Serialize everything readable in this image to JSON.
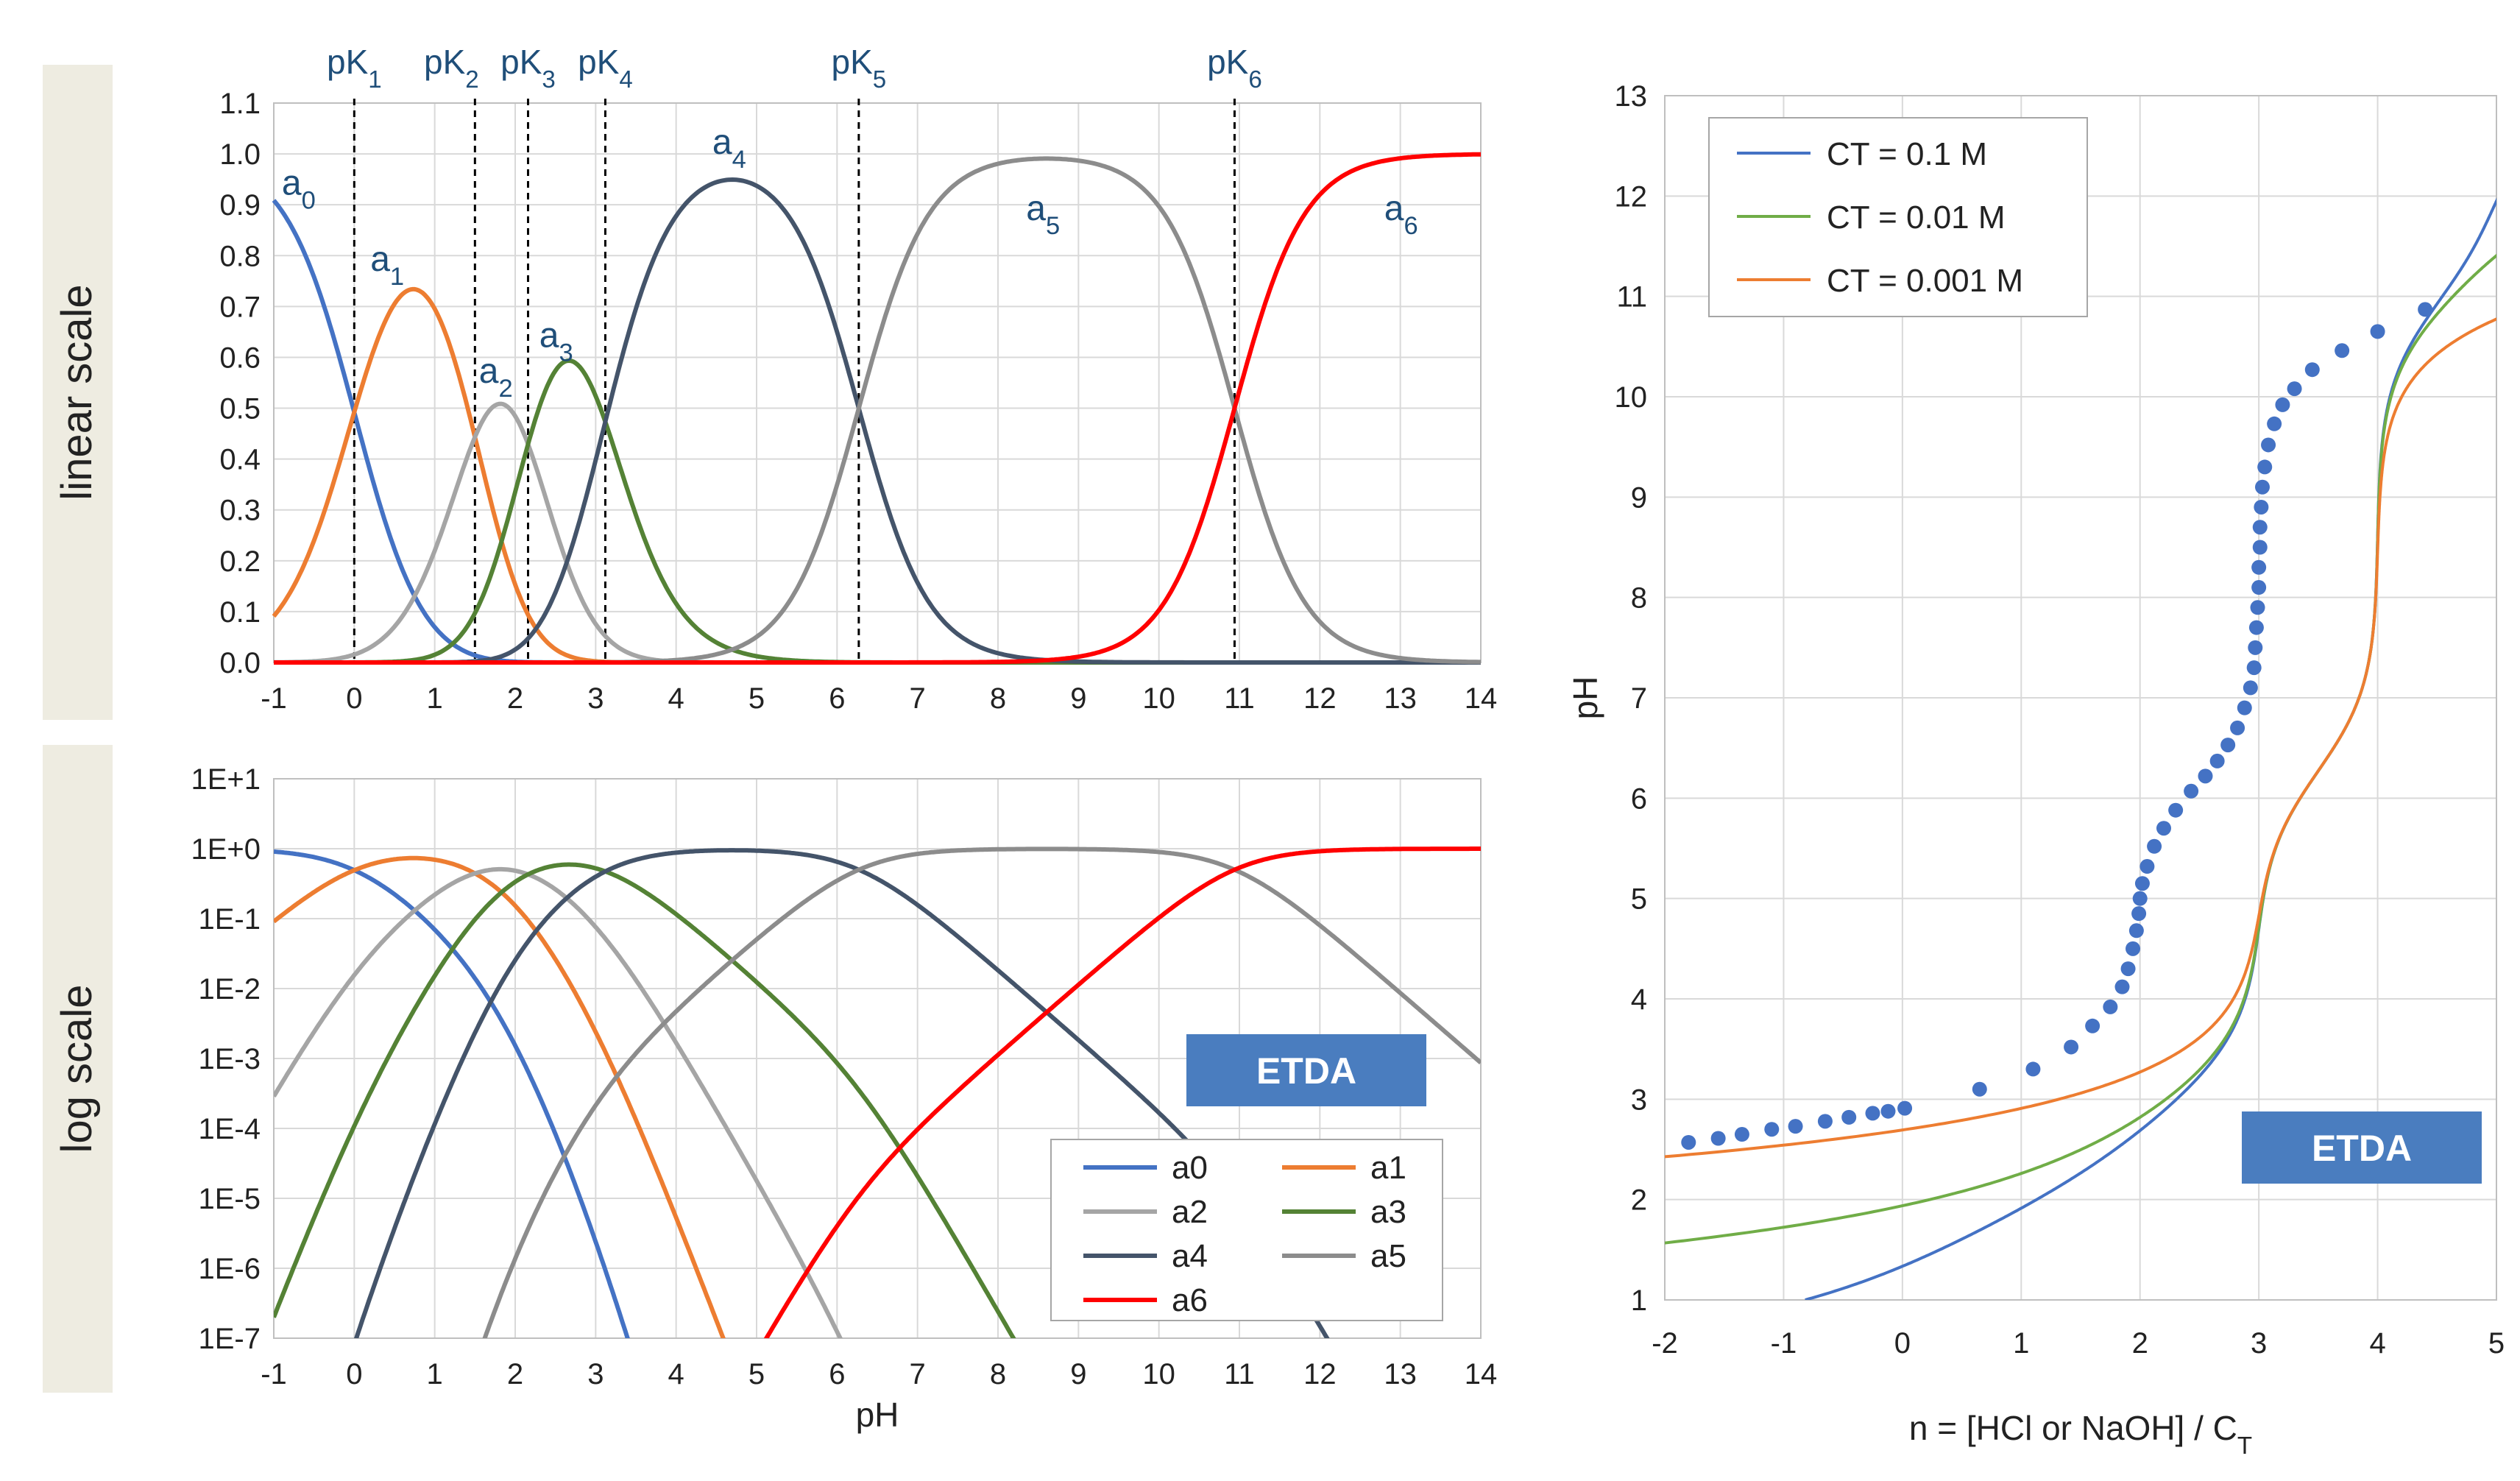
{
  "colors": {
    "a0": "#4472c4",
    "a1": "#ed7d31",
    "a2": "#a5a5a5",
    "a3": "#548235",
    "a4": "#44546a",
    "a5": "#8c8c8c",
    "a6": "#ff0000",
    "ct01": "#4472c4",
    "ct001": "#70ad47",
    "ct0001": "#ed7d31",
    "points": "#4472c4",
    "badge": "#4a7dbf",
    "scale_bg": "#eeece1",
    "grid": "#d9d9d9"
  },
  "side_labels": {
    "linear": "linear scale",
    "log": "log scale"
  },
  "badge_text": "ETDA",
  "chart_data": [
    {
      "id": "linear",
      "type": "line",
      "title": "",
      "xlabel": "",
      "ylabel": "",
      "xlim": [
        -1,
        14
      ],
      "ylim": [
        0,
        1.1
      ],
      "x_ticks": [
        "-1",
        "0",
        "1",
        "2",
        "3",
        "4",
        "5",
        "6",
        "7",
        "8",
        "9",
        "10",
        "11",
        "12",
        "13",
        "14"
      ],
      "y_ticks": [
        "0.0",
        "0.1",
        "0.2",
        "0.3",
        "0.4",
        "0.5",
        "0.6",
        "0.7",
        "0.8",
        "0.9",
        "1.0",
        "1.1"
      ],
      "pK_values": [
        0.0,
        1.5,
        2.16,
        3.12,
        6.27,
        10.94
      ],
      "pK_labels": [
        {
          "main": "pK",
          "sub": "1"
        },
        {
          "main": "pK",
          "sub": "2"
        },
        {
          "main": "pK",
          "sub": "3"
        },
        {
          "main": "pK",
          "sub": "4"
        },
        {
          "main": "pK",
          "sub": "5"
        },
        {
          "main": "pK",
          "sub": "6"
        }
      ],
      "curve_labels": [
        {
          "main": "a",
          "sub": "0",
          "x": -0.9,
          "y": 0.92
        },
        {
          "main": "a",
          "sub": "1",
          "x": 0.2,
          "y": 0.77
        },
        {
          "main": "a",
          "sub": "2",
          "x": 1.55,
          "y": 0.55
        },
        {
          "main": "a",
          "sub": "3",
          "x": 2.3,
          "y": 0.62
        },
        {
          "main": "a",
          "sub": "4",
          "x": 4.45,
          "y": 1.0
        },
        {
          "main": "a",
          "sub": "5",
          "x": 8.35,
          "y": 0.87
        },
        {
          "main": "a",
          "sub": "6",
          "x": 12.8,
          "y": 0.87
        }
      ],
      "series": [
        "a0",
        "a1",
        "a2",
        "a3",
        "a4",
        "a5",
        "a6"
      ]
    },
    {
      "id": "log",
      "type": "line",
      "title": "",
      "xlabel": "pH",
      "ylabel": "",
      "xlim": [
        -1,
        14
      ],
      "ylim_log10": [
        -7,
        1
      ],
      "x_ticks": [
        "-1",
        "0",
        "1",
        "2",
        "3",
        "4",
        "5",
        "6",
        "7",
        "8",
        "9",
        "10",
        "11",
        "12",
        "13",
        "14"
      ],
      "y_ticks": [
        "1E-7",
        "1E-6",
        "1E-5",
        "1E-4",
        "1E-3",
        "1E-2",
        "1E-1",
        "1E+0",
        "1E+1"
      ],
      "series": [
        "a0",
        "a1",
        "a2",
        "a3",
        "a4",
        "a5",
        "a6"
      ],
      "legend": [
        {
          "key": "a0",
          "label": "a0"
        },
        {
          "key": "a1",
          "label": "a1"
        },
        {
          "key": "a2",
          "label": "a2"
        },
        {
          "key": "a3",
          "label": "a3"
        },
        {
          "key": "a4",
          "label": "a4"
        },
        {
          "key": "a5",
          "label": "a5"
        },
        {
          "key": "a6",
          "label": "a6"
        }
      ],
      "legend_position": "bottom-right"
    },
    {
      "id": "titration",
      "type": "line",
      "title": "",
      "xlabel_main": "n = [HCl or NaOH] / C",
      "xlabel_sub": "T",
      "ylabel": "pH",
      "xlim": [
        -2,
        5
      ],
      "ylim": [
        1,
        13
      ],
      "x_ticks": [
        "-2",
        "-1",
        "0",
        "1",
        "2",
        "3",
        "4",
        "5"
      ],
      "y_ticks": [
        "1",
        "2",
        "3",
        "4",
        "5",
        "6",
        "7",
        "8",
        "9",
        "10",
        "11",
        "12",
        "13"
      ],
      "series": [
        {
          "name": "CT = 0.1 M",
          "key": "ct01",
          "CT": 0.1
        },
        {
          "name": "CT = 0.01 M",
          "key": "ct001",
          "CT": 0.01
        },
        {
          "name": "CT = 0.001 M",
          "key": "ct0001",
          "CT": 0.001
        }
      ],
      "legend_position": "top-left",
      "points": [
        [
          -1.8,
          2.57
        ],
        [
          -1.55,
          2.61
        ],
        [
          -1.35,
          2.65
        ],
        [
          -1.1,
          2.7
        ],
        [
          -0.9,
          2.73
        ],
        [
          -0.65,
          2.78
        ],
        [
          -0.45,
          2.82
        ],
        [
          -0.25,
          2.86
        ],
        [
          -0.12,
          2.88
        ],
        [
          0.02,
          2.91
        ],
        [
          0.65,
          3.1
        ],
        [
          1.1,
          3.3
        ],
        [
          1.42,
          3.52
        ],
        [
          1.6,
          3.73
        ],
        [
          1.75,
          3.92
        ],
        [
          1.85,
          4.12
        ],
        [
          1.9,
          4.3
        ],
        [
          1.94,
          4.5
        ],
        [
          1.97,
          4.68
        ],
        [
          1.99,
          4.85
        ],
        [
          2.0,
          5.0
        ],
        [
          2.02,
          5.15
        ],
        [
          2.06,
          5.32
        ],
        [
          2.12,
          5.52
        ],
        [
          2.2,
          5.7
        ],
        [
          2.3,
          5.88
        ],
        [
          2.43,
          6.07
        ],
        [
          2.55,
          6.22
        ],
        [
          2.65,
          6.37
        ],
        [
          2.74,
          6.53
        ],
        [
          2.82,
          6.7
        ],
        [
          2.88,
          6.9
        ],
        [
          2.93,
          7.1
        ],
        [
          2.96,
          7.3
        ],
        [
          2.97,
          7.5
        ],
        [
          2.98,
          7.7
        ],
        [
          2.99,
          7.9
        ],
        [
          3.0,
          8.1
        ],
        [
          3.0,
          8.3
        ],
        [
          3.01,
          8.5
        ],
        [
          3.01,
          8.7
        ],
        [
          3.02,
          8.9
        ],
        [
          3.03,
          9.1
        ],
        [
          3.05,
          9.3
        ],
        [
          3.08,
          9.52
        ],
        [
          3.13,
          9.73
        ],
        [
          3.2,
          9.92
        ],
        [
          3.3,
          10.08
        ],
        [
          3.45,
          10.27
        ],
        [
          3.7,
          10.46
        ],
        [
          4.0,
          10.65
        ],
        [
          4.4,
          10.87
        ]
      ]
    }
  ]
}
